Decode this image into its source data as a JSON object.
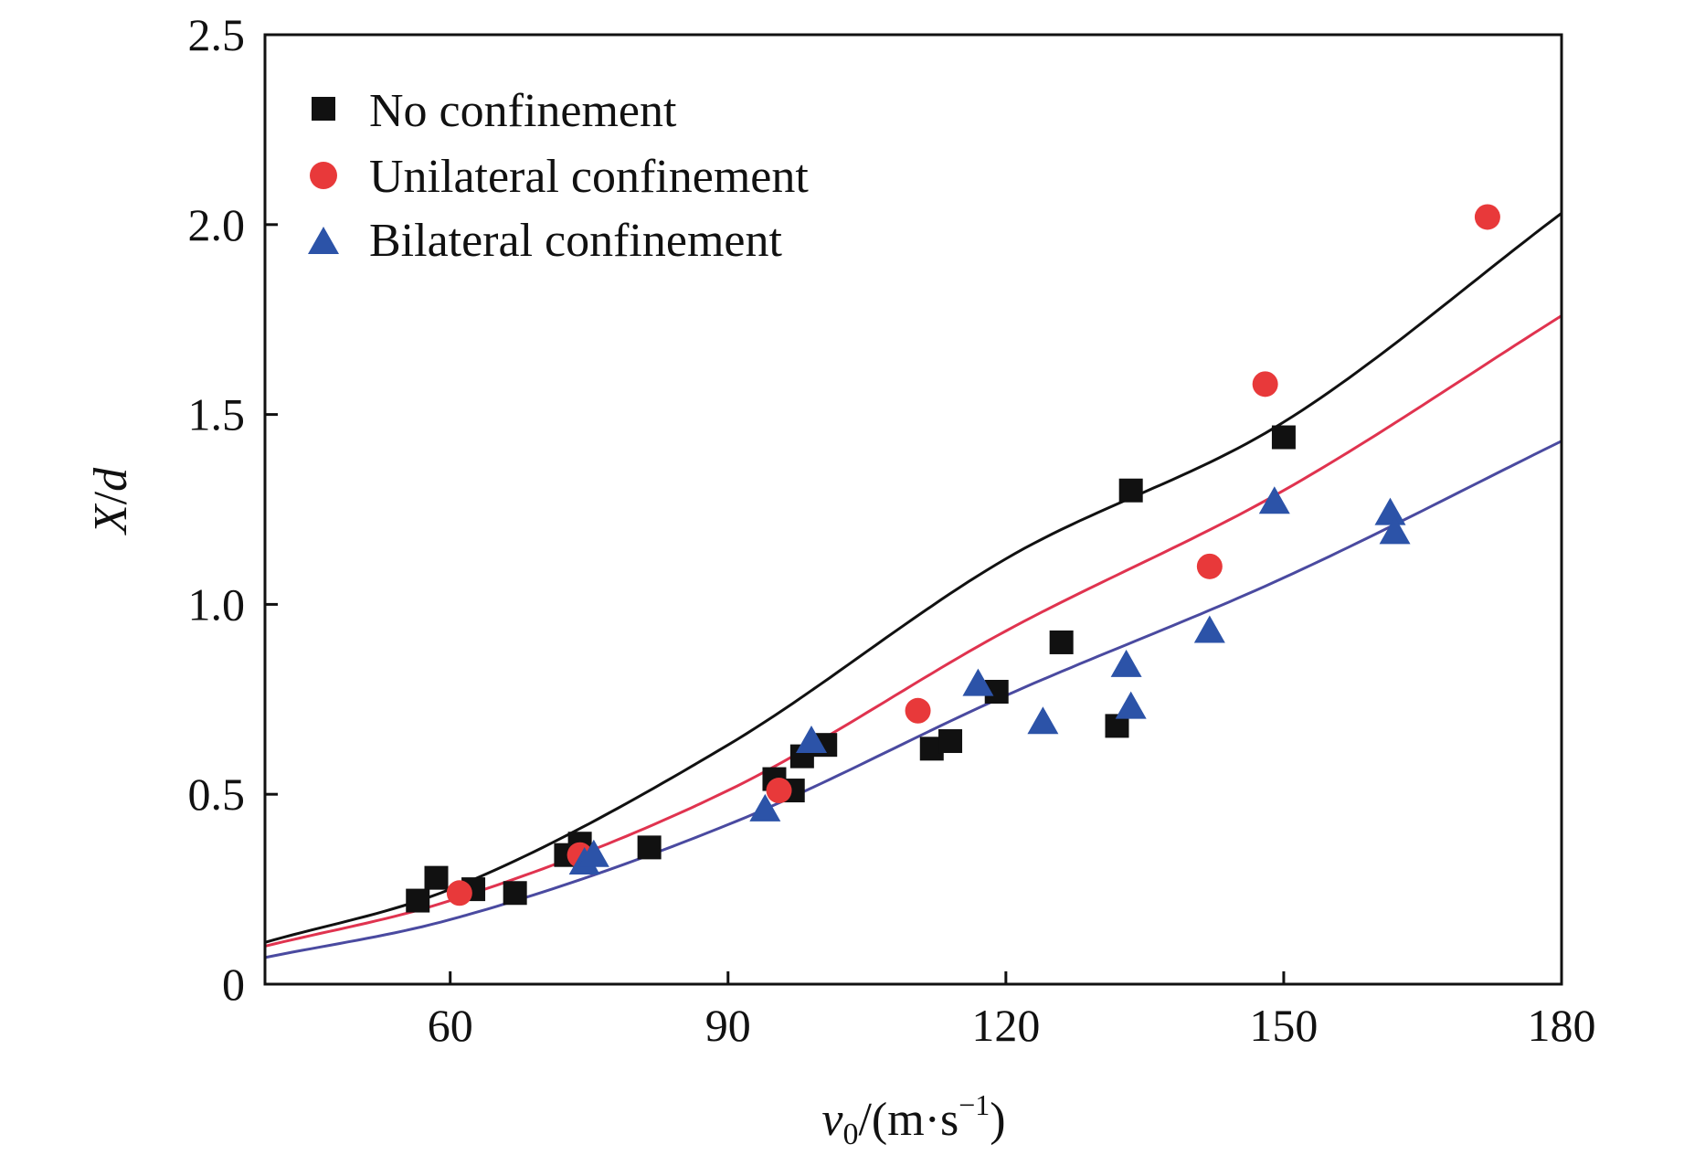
{
  "chart_data": {
    "type": "scatter",
    "title": "",
    "xlabel": {
      "var": "v",
      "sub": "0",
      "unit_open": "/(m·s",
      "unit_exp": "−1",
      "unit_close": ")"
    },
    "ylabel": {
      "var1": "X",
      "sep": "/",
      "var2": "d"
    },
    "xlim": [
      40,
      180
    ],
    "ylim": [
      0,
      2.5
    ],
    "xticks": [
      60,
      90,
      120,
      150,
      180
    ],
    "yticks": [
      0,
      0.5,
      1.0,
      1.5,
      2.0,
      2.5
    ],
    "xtick_labels": [
      "60",
      "90",
      "120",
      "150",
      "180"
    ],
    "ytick_labels": [
      "0",
      "0.5",
      "1.0",
      "1.5",
      "2.0",
      "2.5"
    ],
    "legend_position": "top-left",
    "series": [
      {
        "name": "No confinement",
        "marker": "square",
        "color": "#111111",
        "fit_color": "#111111",
        "fit_points": [
          [
            40,
            0.11
          ],
          [
            60,
            0.25
          ],
          [
            90,
            0.63
          ],
          [
            120,
            1.12
          ],
          [
            150,
            1.48
          ],
          [
            180,
            2.03
          ]
        ],
        "points": [
          [
            56.5,
            0.22
          ],
          [
            58.5,
            0.28
          ],
          [
            62.5,
            0.25
          ],
          [
            67,
            0.24
          ],
          [
            72.5,
            0.34
          ],
          [
            74,
            0.37
          ],
          [
            81.5,
            0.36
          ],
          [
            95,
            0.54
          ],
          [
            97,
            0.51
          ],
          [
            98,
            0.6
          ],
          [
            100.5,
            0.63
          ],
          [
            112,
            0.62
          ],
          [
            114,
            0.64
          ],
          [
            119,
            0.77
          ],
          [
            126,
            0.9
          ],
          [
            132,
            0.68
          ],
          [
            133.5,
            1.3
          ],
          [
            150,
            1.44
          ]
        ]
      },
      {
        "name": "Unilateral confinement",
        "marker": "circle",
        "color": "#e8393a",
        "fit_color": "#e0334f",
        "fit_points": [
          [
            40,
            0.1
          ],
          [
            60,
            0.22
          ],
          [
            90,
            0.51
          ],
          [
            120,
            0.93
          ],
          [
            150,
            1.3
          ],
          [
            180,
            1.76
          ]
        ],
        "points": [
          [
            61,
            0.24
          ],
          [
            74,
            0.34
          ],
          [
            95.5,
            0.51
          ],
          [
            110.5,
            0.72
          ],
          [
            142,
            1.1
          ],
          [
            148,
            1.58
          ],
          [
            172,
            2.02
          ]
        ]
      },
      {
        "name": "Bilateral confinement",
        "marker": "triangle",
        "color": "#2c53a8",
        "fit_color": "#4a4aa0",
        "fit_points": [
          [
            40,
            0.07
          ],
          [
            60,
            0.17
          ],
          [
            90,
            0.42
          ],
          [
            120,
            0.76
          ],
          [
            150,
            1.07
          ],
          [
            180,
            1.43
          ]
        ],
        "points": [
          [
            74.5,
            0.32
          ],
          [
            75.5,
            0.34
          ],
          [
            94,
            0.46
          ],
          [
            99,
            0.64
          ],
          [
            117,
            0.79
          ],
          [
            124,
            0.69
          ],
          [
            133,
            0.84
          ],
          [
            133.5,
            0.73
          ],
          [
            142,
            0.93
          ],
          [
            149,
            1.27
          ],
          [
            161.5,
            1.24
          ],
          [
            162,
            1.19
          ]
        ]
      }
    ]
  }
}
